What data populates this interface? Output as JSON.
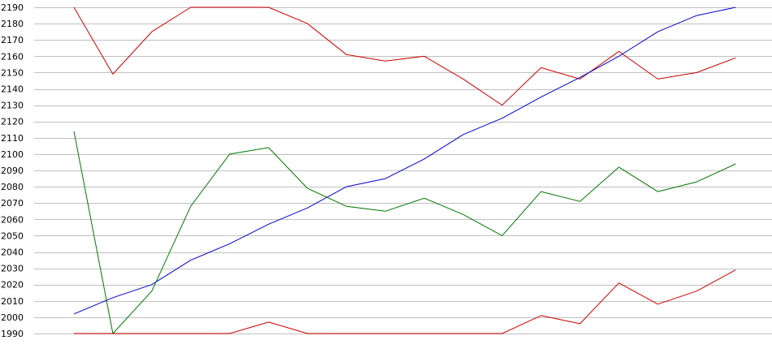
{
  "chart_data": {
    "type": "line",
    "title": "",
    "xlabel": "",
    "ylabel": "",
    "grid": true,
    "ylim": [
      1990,
      2190
    ],
    "yticks": [
      1990,
      2000,
      2010,
      2020,
      2030,
      2040,
      2050,
      2060,
      2070,
      2080,
      2090,
      2100,
      2110,
      2120,
      2130,
      2140,
      2150,
      2160,
      2170,
      2180,
      2190
    ],
    "x": [
      0,
      1,
      2,
      3,
      4,
      5,
      6,
      7,
      8,
      9,
      10,
      11,
      12,
      13,
      14,
      15,
      16,
      17
    ],
    "series": [
      {
        "color": "#cc0000",
        "values": [
          2190,
          2149,
          2175,
          2190,
          2190,
          2190,
          2180,
          2161,
          2157,
          2160,
          2146,
          2130,
          2153,
          2146,
          2163,
          2146,
          2150,
          2159
        ]
      },
      {
        "color": "#0000cc",
        "values": [
          2002,
          2012,
          2020,
          2035,
          2045,
          2057,
          2067,
          2080,
          2085,
          2097,
          2112,
          2122,
          2135,
          2147,
          2160,
          2175,
          2185,
          2190
        ]
      },
      {
        "color": "#007700",
        "values": [
          2114,
          1990,
          2016,
          2068,
          2100,
          2104,
          2079,
          2068,
          2065,
          2073,
          2063,
          2050,
          2077,
          2071,
          2092,
          2077,
          2083,
          2094
        ]
      },
      {
        "color": "#cc0000",
        "values": [
          1990,
          1990,
          1990,
          1990,
          1990,
          1997,
          1990,
          1990,
          1990,
          1990,
          1990,
          1990,
          2001,
          1996,
          2021,
          2008,
          2016,
          2029
        ]
      }
    ]
  }
}
